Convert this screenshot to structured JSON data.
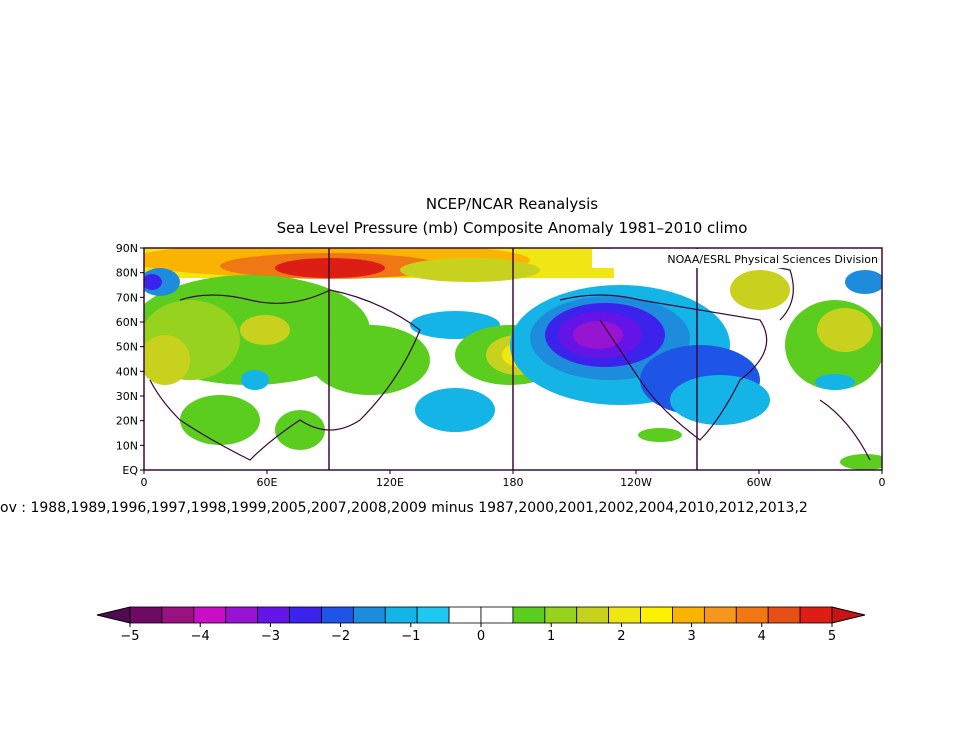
{
  "map": {
    "title": "NCEP/NCAR Reanalysis",
    "subtitle": "Sea Level Pressure (mb) Composite Anomaly 1981–2010 climo",
    "credit": "NOAA/ESRL Physical Sciences Division",
    "x_labels": [
      "0",
      "60E",
      "120E",
      "180",
      "120W",
      "60W",
      "0"
    ],
    "y_labels": [
      "90N",
      "80N",
      "70N",
      "60N",
      "50N",
      "40N",
      "30N",
      "20N",
      "10N",
      "EQ"
    ],
    "caption": "ov : 1988,1989,1996,1997,1998,1999,2005,2007,2008,2009  minus  1987,2000,2001,2002,2004,2010,2012,2013,2"
  },
  "colorbar": {
    "labels": [
      "−5",
      "−4",
      "−3",
      "−2",
      "−1",
      "0",
      "1",
      "2",
      "3",
      "4",
      "5"
    ],
    "colors": [
      "#6e0a64",
      "#9a1282",
      "#c80fc8",
      "#9614d2",
      "#6414e6",
      "#3c23eb",
      "#1e55e6",
      "#1e8cdc",
      "#14b4e6",
      "#1ec8f0",
      "#ffffff",
      "#ffffff",
      "#5acd1e",
      "#96d21e",
      "#c8d21e",
      "#f0e614",
      "#fff000",
      "#fab400",
      "#f5961e",
      "#f07814",
      "#e65014",
      "#dc1e14"
    ],
    "low_color": "#500a50",
    "high_color": "#c81414"
  }
}
